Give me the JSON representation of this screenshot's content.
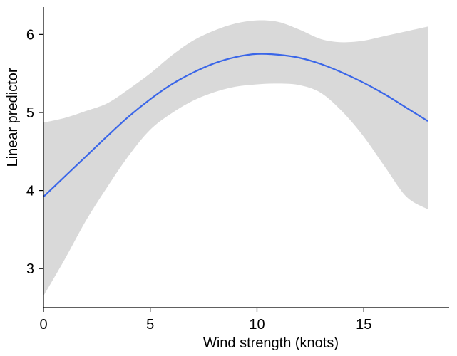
{
  "chart_data": {
    "type": "line",
    "title": "",
    "xlabel": "Wind strength (knots)",
    "ylabel": "Linear predictor",
    "xlim": [
      0,
      19
    ],
    "ylim": [
      2.5,
      6.35
    ],
    "grid": false,
    "x_ticks": [
      0,
      5,
      10,
      15
    ],
    "y_ticks": [
      3,
      4,
      5,
      6
    ],
    "x_tick_labels": [
      "0",
      "5",
      "10",
      "15"
    ],
    "y_tick_labels": [
      "3",
      "4",
      "5",
      "6"
    ],
    "series": [
      {
        "x": [
          0,
          1,
          2,
          3,
          4,
          5,
          6,
          7,
          8,
          9,
          10,
          11,
          12,
          13,
          14,
          15,
          16,
          17,
          18
        ],
        "y": [
          3.92,
          4.18,
          4.44,
          4.7,
          4.95,
          5.17,
          5.36,
          5.51,
          5.63,
          5.71,
          5.75,
          5.74,
          5.7,
          5.62,
          5.51,
          5.38,
          5.23,
          5.06,
          4.89
        ],
        "lower": [
          2.65,
          3.12,
          3.62,
          4.05,
          4.45,
          4.78,
          4.99,
          5.15,
          5.26,
          5.33,
          5.36,
          5.37,
          5.35,
          5.25,
          5.01,
          4.69,
          4.3,
          3.92,
          3.76
        ],
        "upper": [
          4.87,
          4.93,
          5.02,
          5.12,
          5.3,
          5.5,
          5.73,
          5.92,
          6.05,
          6.14,
          6.18,
          6.16,
          6.06,
          5.94,
          5.9,
          5.92,
          5.98,
          6.04,
          6.1
        ]
      }
    ],
    "colors": {
      "line": "#3a66e8",
      "band": "#d9d9d9",
      "axis": "#000000"
    }
  }
}
